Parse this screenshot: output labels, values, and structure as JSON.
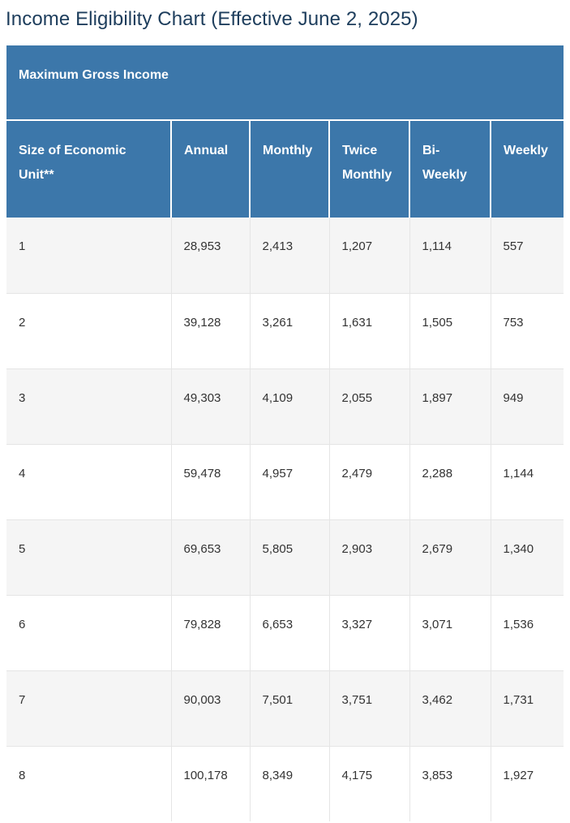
{
  "page": {
    "title": "Income Eligibility Chart (Effective June 2, 2025)"
  },
  "table": {
    "section_header": "Maximum Gross Income",
    "columns": [
      "Size of Economic Unit**",
      "Annual",
      "Monthly",
      "Twice Monthly",
      "Bi-Weekly",
      "Weekly"
    ],
    "rows": [
      [
        "1",
        "28,953",
        "2,413",
        "1,207",
        "1,114",
        "557"
      ],
      [
        "2",
        "39,128",
        "3,261",
        "1,631",
        "1,505",
        "753"
      ],
      [
        "3",
        "49,303",
        "4,109",
        "2,055",
        "1,897",
        "949"
      ],
      [
        "4",
        "59,478",
        "4,957",
        "2,479",
        "2,288",
        "1,144"
      ],
      [
        "5",
        "69,653",
        "5,805",
        "2,903",
        "2,679",
        "1,340"
      ],
      [
        "6",
        "79,828",
        "6,653",
        "3,327",
        "3,071",
        "1,536"
      ],
      [
        "7",
        "90,003",
        "7,501",
        "3,751",
        "3,462",
        "1,731"
      ],
      [
        "8",
        "100,178",
        "8,349",
        "4,175",
        "3,853",
        "1,927"
      ]
    ]
  },
  "colors": {
    "header_bg": "#3c77aa",
    "header_text": "#ffffff",
    "title_text": "#1d3d5c",
    "row_alt_bg": "#f5f5f5",
    "row_bg": "#ffffff",
    "body_text": "#333333",
    "divider": "#e5e5e5"
  }
}
